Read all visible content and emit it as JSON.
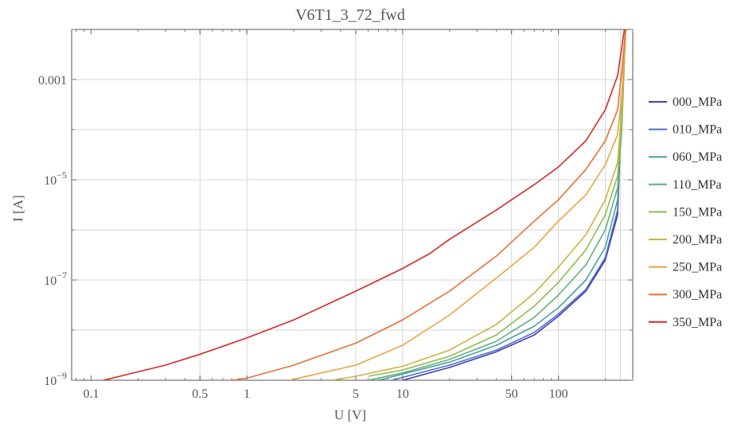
{
  "chart_data": {
    "type": "line",
    "title": "V6T1_3_72_fwd",
    "xlabel": "U [V]",
    "ylabel": "I [A]",
    "x_scale": "log",
    "y_scale": "log",
    "xlim": [
      0.075,
      300
    ],
    "ylim": [
      1e-09,
      0.01
    ],
    "x_ticks": [
      {
        "value": 0.1,
        "label": "0.1"
      },
      {
        "value": 0.5,
        "label": "0.5"
      },
      {
        "value": 1,
        "label": "1"
      },
      {
        "value": 5,
        "label": "5"
      },
      {
        "value": 10,
        "label": "10"
      },
      {
        "value": 50,
        "label": "50"
      },
      {
        "value": 100,
        "label": "100"
      }
    ],
    "y_ticks": [
      {
        "value": 1e-09,
        "label": "10",
        "exp": "−9"
      },
      {
        "value": 1e-07,
        "label": "10",
        "exp": "−7"
      },
      {
        "value": 1e-05,
        "label": "10",
        "exp": "−5"
      },
      {
        "value": 0.001,
        "label": "0.001",
        "exp": ""
      }
    ],
    "x_gridlines": [
      0.5,
      1,
      5,
      10,
      50,
      100,
      200,
      250
    ],
    "y_gridlines": [
      1e-09,
      1e-08,
      1e-07,
      1e-06,
      1e-05,
      0.0001,
      0.001
    ],
    "grid": true,
    "legend_position": "right",
    "series": [
      {
        "name": "000_MPa",
        "color": "#4040a8",
        "x": [
          10,
          20,
          40,
          70,
          100,
          150,
          200,
          240,
          250,
          260,
          270
        ],
        "y": [
          1e-09,
          1.8e-09,
          3.7e-09,
          8e-09,
          1.9e-08,
          6e-08,
          2.5e-07,
          2e-06,
          6e-05,
          0.001,
          0.01
        ]
      },
      {
        "name": "010_MPa",
        "color": "#4a6fd0",
        "x": [
          8.5,
          20,
          40,
          70,
          100,
          150,
          200,
          240,
          250,
          260,
          270
        ],
        "y": [
          1e-09,
          2e-09,
          4e-09,
          9e-09,
          2.1e-08,
          6.5e-08,
          2.8e-07,
          2.5e-06,
          7e-05,
          0.001,
          0.01
        ]
      },
      {
        "name": "060_MPa",
        "color": "#4aa0a0",
        "x": [
          7,
          20,
          40,
          70,
          100,
          150,
          200,
          240,
          250,
          260,
          270
        ],
        "y": [
          1e-09,
          2.3e-09,
          5e-09,
          1.2e-08,
          2.8e-08,
          1e-07,
          4.5e-07,
          4e-06,
          9e-05,
          0.0012,
          0.01
        ]
      },
      {
        "name": "110_MPa",
        "color": "#60b07a",
        "x": [
          6,
          10,
          20,
          40,
          70,
          100,
          150,
          200,
          240,
          255,
          270
        ],
        "y": [
          1e-09,
          1.4e-09,
          2.6e-09,
          6e-09,
          1.8e-08,
          5e-08,
          2e-07,
          1e-06,
          7e-06,
          0.0001,
          0.01
        ]
      },
      {
        "name": "150_MPa",
        "color": "#8cbc50",
        "x": [
          6,
          10,
          20,
          40,
          70,
          100,
          150,
          200,
          240,
          255,
          270
        ],
        "y": [
          1.2e-09,
          1.6e-09,
          3e-09,
          8e-09,
          3e-08,
          9e-08,
          4e-07,
          2e-06,
          1.2e-05,
          0.00015,
          0.01
        ]
      },
      {
        "name": "200_MPa",
        "color": "#c8b43c",
        "x": [
          3.5,
          5,
          10,
          20,
          40,
          70,
          100,
          150,
          200,
          240,
          255,
          270
        ],
        "y": [
          1e-09,
          1.2e-09,
          1.9e-09,
          4e-09,
          1.3e-08,
          5.5e-08,
          1.8e-07,
          8e-07,
          4e-06,
          2.2e-05,
          0.00025,
          0.01
        ]
      },
      {
        "name": "250_MPa",
        "color": "#eaa444",
        "x": [
          1.9,
          2,
          5,
          10,
          20,
          40,
          70,
          100,
          150,
          200,
          240,
          255,
          270
        ],
        "y": [
          1e-09,
          1.05e-09,
          2e-09,
          5e-09,
          2e-08,
          1.1e-07,
          4.5e-07,
          1.5e-06,
          5e-06,
          2e-05,
          8e-05,
          0.0005,
          0.01
        ]
      },
      {
        "name": "300_MPa",
        "color": "#e67038",
        "x": [
          0.8,
          1,
          2,
          5,
          10,
          20,
          40,
          70,
          100,
          150,
          200,
          240,
          255,
          270
        ],
        "y": [
          1e-09,
          1.1e-09,
          2e-09,
          5.5e-09,
          1.6e-08,
          6e-08,
          3e-07,
          1.5e-06,
          4e-06,
          1.6e-05,
          6e-05,
          0.00025,
          0.0015,
          0.01
        ]
      },
      {
        "name": "350_MPa",
        "color": "#d62828",
        "x": [
          0.12,
          0.3,
          0.5,
          1,
          2,
          5,
          10,
          15,
          20,
          40,
          70,
          100,
          150,
          200,
          240,
          265
        ],
        "y": [
          1e-09,
          2e-09,
          3.3e-09,
          7e-09,
          1.6e-08,
          6e-08,
          1.7e-07,
          3.4e-07,
          6.5e-07,
          2.5e-06,
          8e-06,
          1.8e-05,
          6e-05,
          0.00025,
          0.0012,
          0.01
        ]
      }
    ]
  }
}
